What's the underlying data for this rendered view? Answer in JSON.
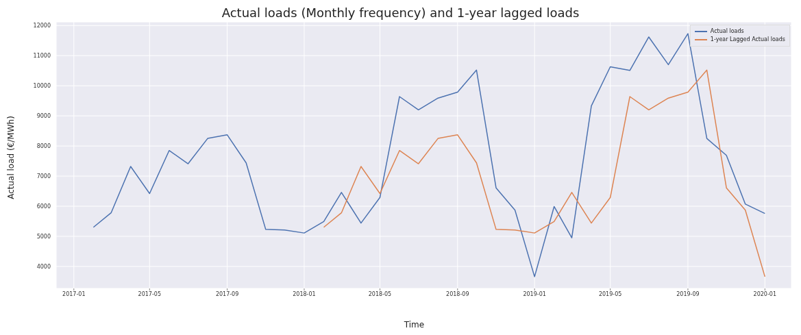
{
  "chart_data": {
    "type": "line",
    "title": "Actual loads (Monthly frequency) and 1-year lagged loads",
    "xlabel": "Time",
    "ylabel": "Actual load (€/MWh)",
    "x": [
      "2017-02",
      "2017-03",
      "2017-04",
      "2017-05",
      "2017-06",
      "2017-07",
      "2017-08",
      "2017-09",
      "2017-10",
      "2017-11",
      "2017-12",
      "2018-01",
      "2018-02",
      "2018-03",
      "2018-04",
      "2018-05",
      "2018-06",
      "2018-07",
      "2018-08",
      "2018-09",
      "2018-10",
      "2018-11",
      "2018-12",
      "2019-01",
      "2019-02",
      "2019-03",
      "2019-04",
      "2019-05",
      "2019-06",
      "2019-07",
      "2019-08",
      "2019-09",
      "2019-10",
      "2019-11",
      "2019-12",
      "2020-01"
    ],
    "series": [
      {
        "name": "Actual loads",
        "color": "#4c72b0",
        "values": [
          5300,
          5780,
          7320,
          6420,
          7850,
          7410,
          8250,
          8370,
          7440,
          5230,
          5210,
          5110,
          5490,
          6460,
          5440,
          6290,
          9640,
          9200,
          9590,
          9790,
          10520,
          6610,
          5870,
          3660,
          5990,
          4950,
          9330,
          10630,
          10510,
          11620,
          10700,
          11730,
          8250,
          7690,
          6070,
          5760
        ]
      },
      {
        "name": "1-year Lagged Actual loads",
        "color": "#dd8452",
        "values": [
          null,
          null,
          null,
          null,
          null,
          null,
          null,
          null,
          null,
          null,
          null,
          null,
          5300,
          5780,
          7320,
          6420,
          7850,
          7410,
          8250,
          8370,
          7440,
          5230,
          5210,
          5110,
          5490,
          6460,
          5440,
          6290,
          9640,
          9200,
          9590,
          9790,
          10520,
          6610,
          5870,
          3660
        ]
      }
    ],
    "xlim": [
      "2016-12-04",
      "2020-02-12"
    ],
    "xticks": [
      "2017-01",
      "2017-05",
      "2017-09",
      "2018-01",
      "2018-05",
      "2018-09",
      "2019-01",
      "2019-05",
      "2019-09",
      "2020-01"
    ],
    "ylim": [
      3270,
      12120
    ],
    "yticks": [
      4000,
      5000,
      6000,
      7000,
      8000,
      9000,
      10000,
      11000,
      12000
    ],
    "grid": true,
    "legend": "top right",
    "marker": "none",
    "line_style": "solid"
  }
}
